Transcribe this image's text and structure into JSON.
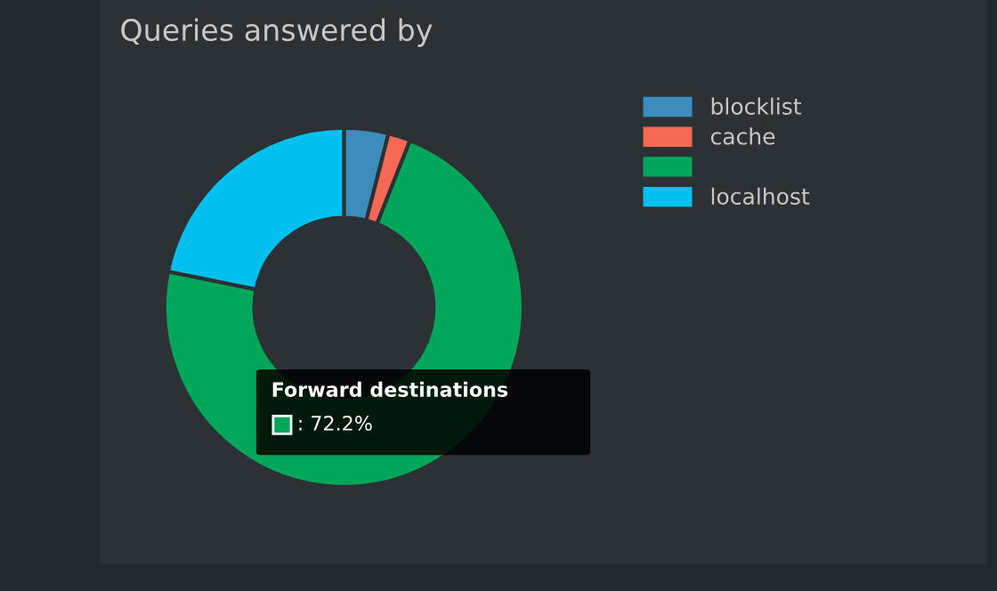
{
  "chart_data": {
    "type": "donut",
    "title": "Queries answered by",
    "categories": [
      "blocklist",
      "cache",
      null,
      "localhost"
    ],
    "values": [
      4.0,
      2.0,
      72.2,
      21.8
    ],
    "colors": [
      "#3c8dbc",
      "#f56954",
      "#00a65a",
      "#00c0ef"
    ],
    "legend": "top right",
    "annotations": [
      "Forward destinations",
      ": 72.2%"
    ]
  }
}
